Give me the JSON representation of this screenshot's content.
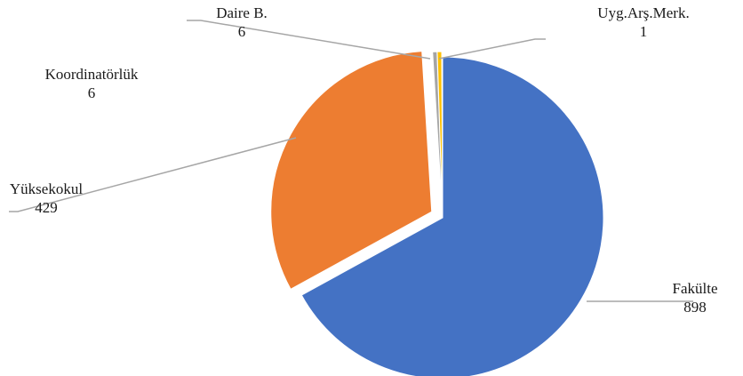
{
  "chart_data": {
    "type": "pie",
    "title": "",
    "slices": [
      {
        "label": "Fakülte",
        "value": 898,
        "color": "#4472C4"
      },
      {
        "label": "Yüksekokul",
        "value": 429,
        "color": "#ED7D31"
      },
      {
        "label": "Koordinatörlük",
        "value": 6,
        "color": "#A5A5A5"
      },
      {
        "label": "Daire B.",
        "value": 6,
        "color": "#FFC000"
      },
      {
        "label": "Uyg.Arş.Merk.",
        "value": 1,
        "color": "#5B9BD5"
      }
    ],
    "data_labels": "category-and-value",
    "legend": "none"
  }
}
